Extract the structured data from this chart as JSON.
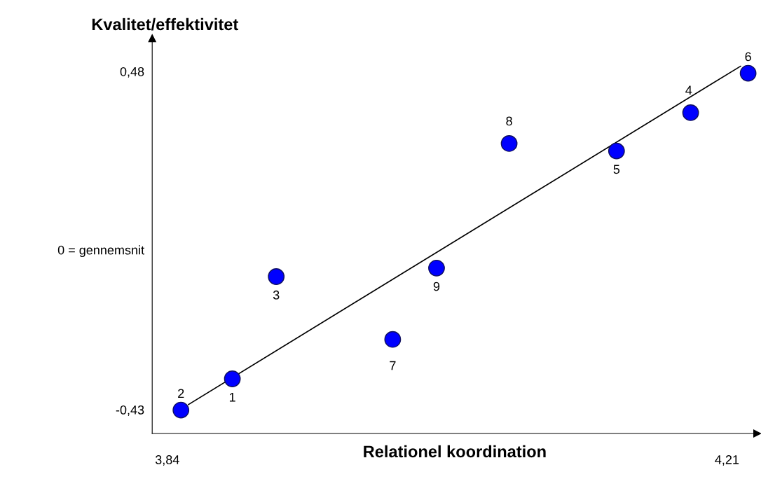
{
  "chart_data": {
    "type": "scatter",
    "xlabel": "Relationel koordination",
    "ylabel": "Kvalitet/effektivitet",
    "xlim": [
      3.83,
      4.23
    ],
    "xticks": [
      {
        "value": 3.84,
        "label": "3,84"
      },
      {
        "value": 4.21,
        "label": "4,21"
      }
    ],
    "ylim": [
      -0.494,
      0.569
    ],
    "yticks": [
      {
        "value": -0.43,
        "label": "-0,43"
      },
      {
        "value": 0,
        "label": "0 = gennemsnit"
      },
      {
        "value": 0.48,
        "label": "0,48"
      }
    ],
    "series": [
      {
        "marker": "circle",
        "color": "#0000ff",
        "x": [
          3.883,
          3.849,
          3.912,
          4.186,
          4.137,
          4.224,
          3.989,
          4.066,
          4.018
        ],
        "values": [
          -0.347,
          -0.431,
          -0.072,
          0.369,
          0.266,
          0.475,
          -0.241,
          0.286,
          -0.049
        ]
      },
      {
        "type": "line",
        "marker": "none",
        "color": "#000000",
        "x": [
          3.854,
          4.219
        ],
        "values": [
          -0.416,
          0.494
        ]
      }
    ],
    "grid": false,
    "legend": false,
    "annotations": [
      {
        "text": "1",
        "x": 3.883,
        "y": -0.347
      },
      {
        "text": "2",
        "x": 3.849,
        "y": -0.431
      },
      {
        "text": "3",
        "x": 3.912,
        "y": -0.072
      },
      {
        "text": "4",
        "x": 4.186,
        "y": 0.369
      },
      {
        "text": "5",
        "x": 4.137,
        "y": 0.266
      },
      {
        "text": "6",
        "x": 4.224,
        "y": 0.475
      },
      {
        "text": "7",
        "x": 3.989,
        "y": -0.241
      },
      {
        "text": "8",
        "x": 4.066,
        "y": 0.286
      },
      {
        "text": "9",
        "x": 4.018,
        "y": -0.049
      }
    ]
  }
}
